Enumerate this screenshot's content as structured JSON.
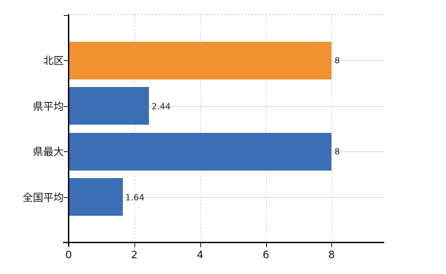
{
  "chart_data": {
    "type": "bar",
    "orientation": "horizontal",
    "title": "",
    "xlabel": "",
    "ylabel": "",
    "categories": [
      "北区",
      "県平均",
      "県最大",
      "全国平均"
    ],
    "values": [
      8,
      2.44,
      8,
      1.64
    ],
    "value_labels": [
      "8",
      "2.44",
      "8",
      "1.64"
    ],
    "bar_colors": [
      "#ef922f",
      "#3b6eb4",
      "#3b6eb4",
      "#3b6eb4"
    ],
    "x_ticks": [
      0,
      2,
      4,
      6,
      8
    ],
    "x_tick_labels": [
      "0",
      "2",
      "4",
      "6",
      "8"
    ],
    "xlim": [
      0,
      9.6
    ],
    "grid": "on",
    "legend": "none"
  },
  "colors": {
    "background": "#ffffff",
    "bar_orange": "#ef922f",
    "bar_blue": "#3b6eb4",
    "axis": "#000000",
    "grid_horizontal": "#d5dacf",
    "grid_vertical": "#d6d6d6",
    "plot_border_dashed": "#c9c9c9",
    "text": "#111111"
  }
}
